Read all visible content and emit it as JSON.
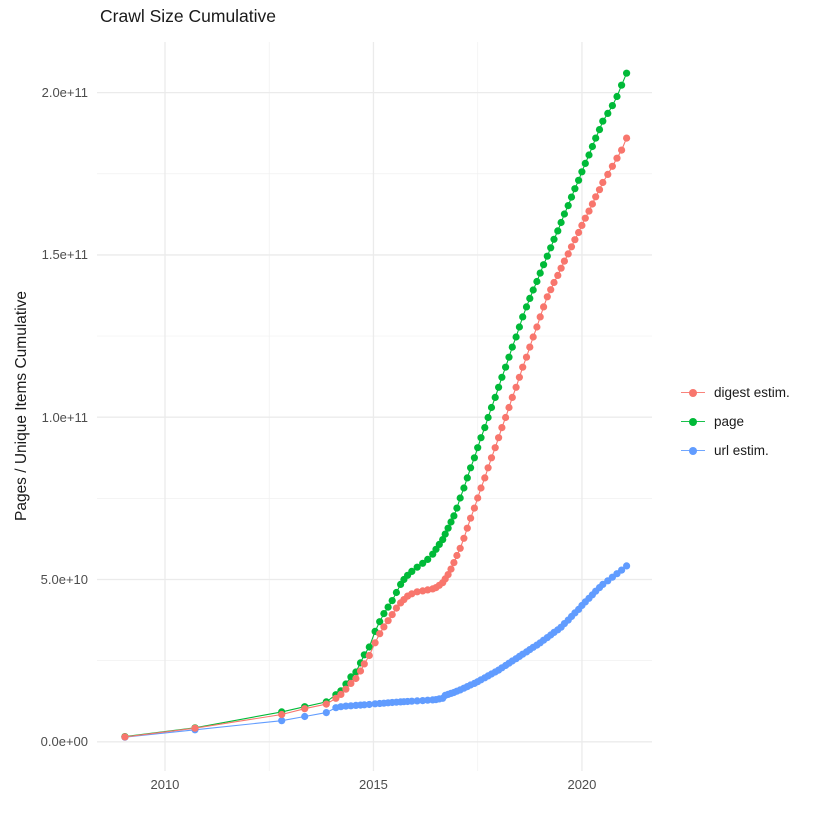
{
  "title": "Crawl Size Cumulative",
  "colors": {
    "background": "#FFFFFF",
    "grid_major": "#EBEBEB",
    "grid_minor": "#F0F0F0",
    "tick_label": "#4D4D4D",
    "text": "#1A1A1A",
    "digest_estim": "#F8766D",
    "page": "#00BA38",
    "url_estim": "#619CFF"
  },
  "chart_data": {
    "type": "scatter",
    "title": "Crawl Size Cumulative",
    "xlabel": "",
    "ylabel": "Pages / Unique Items Cumulative",
    "grid": true,
    "legend_position": "right",
    "xlim": [
      2008.37,
      2021.68
    ],
    "ylim_e9": [
      -9,
      215.6
    ],
    "x_major_ticks": [
      {
        "value": 2010,
        "label": "2010"
      },
      {
        "value": 2015,
        "label": "2015"
      },
      {
        "value": 2020,
        "label": "2020"
      }
    ],
    "x_minor_ticks": [
      2012.5,
      2017.5
    ],
    "y_major_ticks": [
      {
        "value_e9": 0,
        "label": "0.0e+00"
      },
      {
        "value_e9": 50,
        "label": "5.0e+10"
      },
      {
        "value_e9": 100,
        "label": "1.0e+11"
      },
      {
        "value_e9": 150,
        "label": "1.5e+11"
      },
      {
        "value_e9": 200,
        "label": "2.0e+11"
      }
    ],
    "y_minor_ticks_e9": [
      25,
      75,
      125,
      175
    ],
    "series": [
      {
        "name": "digest estim.",
        "color": "#F8766D",
        "points_year_value_e9": [
          [
            2009.04,
            1.5
          ],
          [
            2010.72,
            4.2
          ],
          [
            2012.8,
            8.4
          ],
          [
            2013.35,
            10.2
          ],
          [
            2013.87,
            11.6
          ],
          [
            2014.1,
            13.4
          ],
          [
            2014.22,
            14.6
          ],
          [
            2014.34,
            16.2
          ],
          [
            2014.46,
            18.0
          ],
          [
            2014.58,
            19.5
          ],
          [
            2014.69,
            21.8
          ],
          [
            2014.78,
            24.0
          ],
          [
            2014.9,
            26.6
          ],
          [
            2015.04,
            30.5
          ],
          [
            2015.15,
            33.3
          ],
          [
            2015.25,
            35.4
          ],
          [
            2015.35,
            37.3
          ],
          [
            2015.45,
            39.2
          ],
          [
            2015.55,
            41.2
          ],
          [
            2015.65,
            42.8
          ],
          [
            2015.73,
            43.8
          ],
          [
            2015.82,
            44.9
          ],
          [
            2015.92,
            45.6
          ],
          [
            2016.05,
            46.2
          ],
          [
            2016.18,
            46.5
          ],
          [
            2016.3,
            46.8
          ],
          [
            2016.42,
            47.1
          ],
          [
            2016.5,
            47.5
          ],
          [
            2016.58,
            48.2
          ],
          [
            2016.66,
            49.0
          ],
          [
            2016.72,
            50.2
          ],
          [
            2016.79,
            51.5
          ],
          [
            2016.86,
            53.2
          ],
          [
            2016.93,
            55.2
          ],
          [
            2017.0,
            57.4
          ],
          [
            2017.08,
            59.6
          ],
          [
            2017.17,
            62.7
          ],
          [
            2017.25,
            65.8
          ],
          [
            2017.33,
            68.9
          ],
          [
            2017.42,
            72.0
          ],
          [
            2017.5,
            75.1
          ],
          [
            2017.58,
            78.2
          ],
          [
            2017.67,
            81.3
          ],
          [
            2017.75,
            84.4
          ],
          [
            2017.83,
            87.5
          ],
          [
            2017.92,
            90.6
          ],
          [
            2018.0,
            93.7
          ],
          [
            2018.08,
            96.8
          ],
          [
            2018.17,
            99.9
          ],
          [
            2018.25,
            103.0
          ],
          [
            2018.33,
            106.1
          ],
          [
            2018.42,
            109.2
          ],
          [
            2018.5,
            112.3
          ],
          [
            2018.58,
            115.4
          ],
          [
            2018.67,
            118.5
          ],
          [
            2018.75,
            121.6
          ],
          [
            2018.83,
            124.7
          ],
          [
            2018.92,
            127.8
          ],
          [
            2019.0,
            130.9
          ],
          [
            2019.08,
            134.0
          ],
          [
            2019.17,
            137.1
          ],
          [
            2019.25,
            139.3
          ],
          [
            2019.33,
            141.5
          ],
          [
            2019.42,
            143.7
          ],
          [
            2019.5,
            145.9
          ],
          [
            2019.58,
            148.1
          ],
          [
            2019.67,
            150.3
          ],
          [
            2019.75,
            152.5
          ],
          [
            2019.83,
            154.7
          ],
          [
            2019.92,
            156.9
          ],
          [
            2020.0,
            159.1
          ],
          [
            2020.08,
            161.3
          ],
          [
            2020.17,
            163.5
          ],
          [
            2020.25,
            165.7
          ],
          [
            2020.33,
            167.9
          ],
          [
            2020.42,
            170.1
          ],
          [
            2020.5,
            172.3
          ],
          [
            2020.62,
            174.8
          ],
          [
            2020.73,
            177.3
          ],
          [
            2020.84,
            179.8
          ],
          [
            2020.95,
            182.3
          ],
          [
            2021.07,
            186.0
          ]
        ]
      },
      {
        "name": "page",
        "color": "#00BA38",
        "points_year_value_e9": [
          [
            2009.04,
            1.6
          ],
          [
            2010.72,
            4.3
          ],
          [
            2012.8,
            9.2
          ],
          [
            2013.35,
            10.8
          ],
          [
            2013.87,
            12.3
          ],
          [
            2014.1,
            14.5
          ],
          [
            2014.22,
            15.7
          ],
          [
            2014.34,
            17.8
          ],
          [
            2014.46,
            20.0
          ],
          [
            2014.58,
            21.5
          ],
          [
            2014.69,
            24.3
          ],
          [
            2014.78,
            26.8
          ],
          [
            2014.9,
            29.2
          ],
          [
            2015.04,
            34.0
          ],
          [
            2015.15,
            37.0
          ],
          [
            2015.25,
            39.5
          ],
          [
            2015.35,
            41.5
          ],
          [
            2015.45,
            43.5
          ],
          [
            2015.55,
            46.0
          ],
          [
            2015.65,
            48.5
          ],
          [
            2015.73,
            50.0
          ],
          [
            2015.82,
            51.3
          ],
          [
            2015.92,
            52.5
          ],
          [
            2016.05,
            53.8
          ],
          [
            2016.18,
            55.0
          ],
          [
            2016.3,
            56.2
          ],
          [
            2016.42,
            57.8
          ],
          [
            2016.5,
            59.3
          ],
          [
            2016.58,
            60.8
          ],
          [
            2016.66,
            62.3
          ],
          [
            2016.72,
            64.0
          ],
          [
            2016.79,
            65.8
          ],
          [
            2016.86,
            67.7
          ],
          [
            2016.93,
            69.6
          ],
          [
            2017.0,
            72.0
          ],
          [
            2017.08,
            75.1
          ],
          [
            2017.17,
            78.2
          ],
          [
            2017.25,
            81.3
          ],
          [
            2017.33,
            84.4
          ],
          [
            2017.42,
            87.5
          ],
          [
            2017.5,
            90.6
          ],
          [
            2017.58,
            93.7
          ],
          [
            2017.67,
            96.8
          ],
          [
            2017.75,
            99.9
          ],
          [
            2017.83,
            103.0
          ],
          [
            2017.92,
            106.1
          ],
          [
            2018.0,
            109.2
          ],
          [
            2018.08,
            112.3
          ],
          [
            2018.17,
            115.4
          ],
          [
            2018.25,
            118.5
          ],
          [
            2018.33,
            121.6
          ],
          [
            2018.42,
            124.7
          ],
          [
            2018.5,
            127.8
          ],
          [
            2018.58,
            130.9
          ],
          [
            2018.67,
            134.0
          ],
          [
            2018.75,
            136.6
          ],
          [
            2018.83,
            139.2
          ],
          [
            2018.92,
            141.8
          ],
          [
            2019.0,
            144.4
          ],
          [
            2019.08,
            147.0
          ],
          [
            2019.17,
            149.6
          ],
          [
            2019.25,
            152.2
          ],
          [
            2019.33,
            154.8
          ],
          [
            2019.42,
            157.4
          ],
          [
            2019.5,
            160.0
          ],
          [
            2019.58,
            162.6
          ],
          [
            2019.67,
            165.2
          ],
          [
            2019.75,
            167.8
          ],
          [
            2019.83,
            170.4
          ],
          [
            2019.92,
            173.0
          ],
          [
            2020.0,
            175.6
          ],
          [
            2020.08,
            178.2
          ],
          [
            2020.17,
            180.8
          ],
          [
            2020.25,
            183.4
          ],
          [
            2020.33,
            186.0
          ],
          [
            2020.42,
            188.6
          ],
          [
            2020.5,
            191.2
          ],
          [
            2020.62,
            193.6
          ],
          [
            2020.73,
            196.0
          ],
          [
            2020.84,
            198.8
          ],
          [
            2020.95,
            202.3
          ],
          [
            2021.07,
            206.0
          ]
        ]
      },
      {
        "name": "url estim.",
        "color": "#619CFF",
        "points_year_value_e9": [
          [
            2009.04,
            1.4
          ],
          [
            2010.72,
            3.7
          ],
          [
            2012.8,
            6.5
          ],
          [
            2013.35,
            7.8
          ],
          [
            2013.87,
            9.0
          ],
          [
            2014.1,
            10.5
          ],
          [
            2014.22,
            10.8
          ],
          [
            2014.34,
            11.0
          ],
          [
            2014.46,
            11.1
          ],
          [
            2014.58,
            11.2
          ],
          [
            2014.69,
            11.3
          ],
          [
            2014.78,
            11.4
          ],
          [
            2014.9,
            11.5
          ],
          [
            2015.04,
            11.7
          ],
          [
            2015.15,
            11.8
          ],
          [
            2015.25,
            11.9
          ],
          [
            2015.35,
            12.0
          ],
          [
            2015.45,
            12.1
          ],
          [
            2015.55,
            12.2
          ],
          [
            2015.65,
            12.3
          ],
          [
            2015.73,
            12.35
          ],
          [
            2015.82,
            12.4
          ],
          [
            2015.92,
            12.5
          ],
          [
            2016.05,
            12.6
          ],
          [
            2016.18,
            12.7
          ],
          [
            2016.3,
            12.8
          ],
          [
            2016.42,
            12.9
          ],
          [
            2016.5,
            13.0
          ],
          [
            2016.58,
            13.2
          ],
          [
            2016.66,
            13.4
          ],
          [
            2016.72,
            14.3
          ],
          [
            2016.79,
            14.6
          ],
          [
            2016.86,
            14.9
          ],
          [
            2016.93,
            15.2
          ],
          [
            2017.0,
            15.6
          ],
          [
            2017.08,
            16.0
          ],
          [
            2017.17,
            16.5
          ],
          [
            2017.25,
            17.0
          ],
          [
            2017.33,
            17.5
          ],
          [
            2017.42,
            18.0
          ],
          [
            2017.5,
            18.5
          ],
          [
            2017.58,
            19.1
          ],
          [
            2017.67,
            19.7
          ],
          [
            2017.75,
            20.3
          ],
          [
            2017.83,
            20.9
          ],
          [
            2017.92,
            21.5
          ],
          [
            2018.0,
            22.1
          ],
          [
            2018.08,
            22.8
          ],
          [
            2018.17,
            23.5
          ],
          [
            2018.25,
            24.2
          ],
          [
            2018.33,
            24.9
          ],
          [
            2018.42,
            25.6
          ],
          [
            2018.5,
            26.3
          ],
          [
            2018.58,
            27.0
          ],
          [
            2018.67,
            27.7
          ],
          [
            2018.75,
            28.4
          ],
          [
            2018.83,
            29.1
          ],
          [
            2018.92,
            29.8
          ],
          [
            2019.0,
            30.5
          ],
          [
            2019.08,
            31.3
          ],
          [
            2019.17,
            32.1
          ],
          [
            2019.25,
            32.9
          ],
          [
            2019.33,
            33.7
          ],
          [
            2019.42,
            34.5
          ],
          [
            2019.5,
            35.3
          ],
          [
            2019.58,
            36.4
          ],
          [
            2019.67,
            37.5
          ],
          [
            2019.75,
            38.6
          ],
          [
            2019.83,
            39.7
          ],
          [
            2019.92,
            40.8
          ],
          [
            2020.0,
            42.0
          ],
          [
            2020.08,
            43.1
          ],
          [
            2020.17,
            44.2
          ],
          [
            2020.25,
            45.3
          ],
          [
            2020.33,
            46.4
          ],
          [
            2020.42,
            47.5
          ],
          [
            2020.5,
            48.5
          ],
          [
            2020.62,
            49.6
          ],
          [
            2020.73,
            50.7
          ],
          [
            2020.84,
            51.8
          ],
          [
            2020.95,
            52.9
          ],
          [
            2021.07,
            54.2
          ]
        ]
      }
    ]
  }
}
